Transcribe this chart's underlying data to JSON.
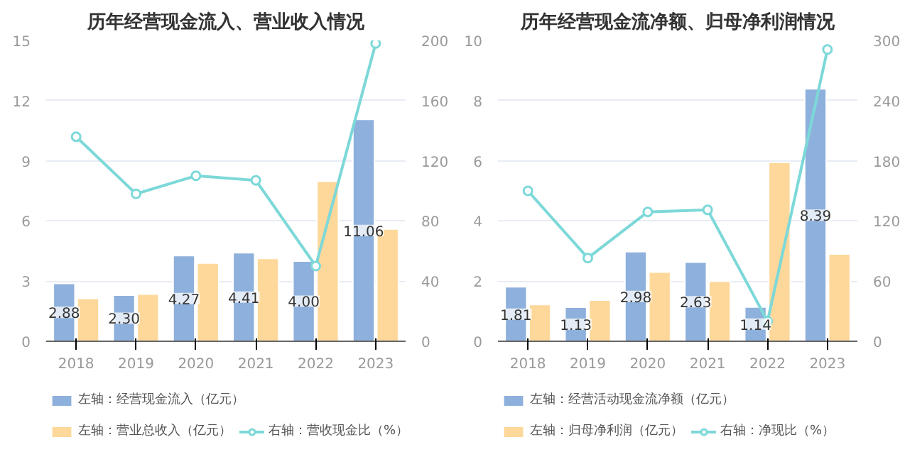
{
  "chart_data": [
    {
      "type": "bar",
      "title": "历年经营现金流入、营业收入情况",
      "categories": [
        "2018",
        "2019",
        "2020",
        "2021",
        "2022",
        "2023"
      ],
      "ylim": [
        0,
        15
      ],
      "yticks": [
        0,
        3,
        6,
        9,
        12,
        15
      ],
      "y2lim": [
        0,
        200
      ],
      "y2ticks": [
        0,
        40,
        80,
        120,
        160,
        200
      ],
      "grid": "y",
      "legend": "bottom",
      "series": [
        {
          "name": "左轴：经营现金流入（亿元）",
          "color": "#8eb0dc",
          "values": [
            2.88,
            2.3,
            4.27,
            4.41,
            4.0,
            11.06
          ],
          "value_labels": [
            "2.88",
            "2.30",
            "4.27",
            "4.41",
            "4.00",
            "11.06"
          ]
        },
        {
          "name": "左轴：营业总收入（亿元）",
          "color": "#fdd89a",
          "values": [
            2.13,
            2.35,
            3.9,
            4.13,
            7.98,
            5.6
          ]
        },
        {
          "name": "右轴：营收现金比（%）",
          "color": "#7dd8d8",
          "type": "line",
          "axis": "y2",
          "marker": "circle",
          "values": [
            136,
            98,
            110,
            107,
            50,
            198
          ]
        }
      ]
    },
    {
      "type": "bar",
      "title": "历年经营现金流净额、归母净利润情况",
      "categories": [
        "2018",
        "2019",
        "2020",
        "2021",
        "2022",
        "2023"
      ],
      "ylim": [
        0,
        10
      ],
      "yticks": [
        0,
        2,
        4,
        6,
        8,
        10
      ],
      "y2lim": [
        0,
        300
      ],
      "y2ticks": [
        0,
        60,
        120,
        180,
        240,
        300
      ],
      "grid": "y",
      "legend": "bottom",
      "series": [
        {
          "name": "左轴：经营活动现金流净额（亿元）",
          "color": "#8eb0dc",
          "values": [
            1.81,
            1.13,
            2.98,
            2.63,
            1.14,
            8.39
          ],
          "value_labels": [
            "1.81",
            "1.13",
            "2.98",
            "2.63",
            "1.14",
            "8.39"
          ]
        },
        {
          "name": "左轴：归母净利润（亿元）",
          "color": "#fdd89a",
          "values": [
            1.22,
            1.37,
            2.3,
            2.0,
            5.95,
            2.9
          ]
        },
        {
          "name": "右轴：净现比（%）",
          "color": "#7dd8d8",
          "type": "line",
          "axis": "y2",
          "marker": "circle",
          "values": [
            150,
            83,
            129,
            131,
            20,
            291
          ]
        }
      ]
    }
  ]
}
